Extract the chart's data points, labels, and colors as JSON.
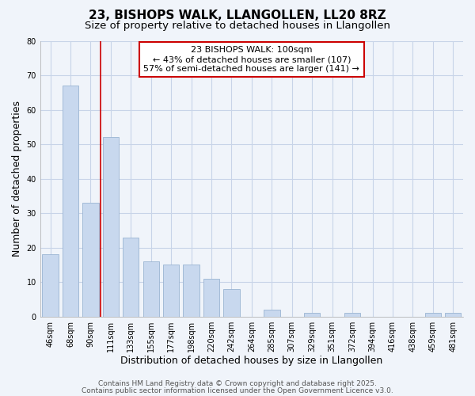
{
  "title": "23, BISHOPS WALK, LLANGOLLEN, LL20 8RZ",
  "subtitle": "Size of property relative to detached houses in Llangollen",
  "xlabel": "Distribution of detached houses by size in Llangollen",
  "ylabel": "Number of detached properties",
  "bar_labels": [
    "46sqm",
    "68sqm",
    "90sqm",
    "111sqm",
    "133sqm",
    "155sqm",
    "177sqm",
    "198sqm",
    "220sqm",
    "242sqm",
    "264sqm",
    "285sqm",
    "307sqm",
    "329sqm",
    "351sqm",
    "372sqm",
    "394sqm",
    "416sqm",
    "438sqm",
    "459sqm",
    "481sqm"
  ],
  "bar_values": [
    18,
    67,
    33,
    52,
    23,
    16,
    15,
    15,
    11,
    8,
    0,
    2,
    0,
    1,
    0,
    1,
    0,
    0,
    0,
    1,
    1
  ],
  "bar_color": "#c8d8ee",
  "bar_edge_color": "#9ab4d2",
  "vline_x": 2.5,
  "vline_color": "#cc0000",
  "annotation_box_text": "23 BISHOPS WALK: 100sqm\n← 43% of detached houses are smaller (107)\n57% of semi-detached houses are larger (141) →",
  "annotation_box_color": "#cc0000",
  "ylim": [
    0,
    80
  ],
  "yticks": [
    0,
    10,
    20,
    30,
    40,
    50,
    60,
    70,
    80
  ],
  "grid_color": "#c8d4e8",
  "bg_color": "#f0f4fa",
  "plot_bg_color": "#f0f4fa",
  "footer1": "Contains HM Land Registry data © Crown copyright and database right 2025.",
  "footer2": "Contains public sector information licensed under the Open Government Licence v3.0.",
  "title_fontsize": 11,
  "subtitle_fontsize": 9.5,
  "label_fontsize": 9,
  "tick_fontsize": 7,
  "annotation_fontsize": 8,
  "footer_fontsize": 6.5
}
